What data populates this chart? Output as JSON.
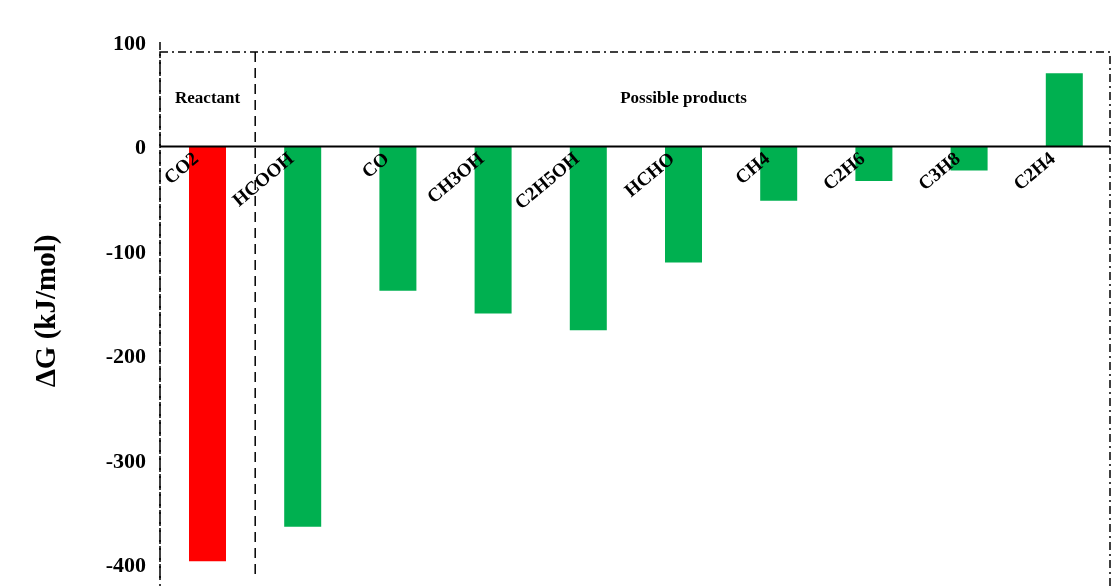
{
  "chart_data": {
    "type": "bar",
    "ylabel": "ΔG (kJ/mol)",
    "categories": [
      "CO2",
      "HCOOH",
      "CO",
      "CH3OH",
      "C2H5OH",
      "HCHO",
      "CH4",
      "C2H6",
      "C3H8",
      "C2H4"
    ],
    "values": [
      -397,
      -364,
      -138,
      -160,
      -176,
      -111,
      -52,
      -33,
      -23,
      70
    ],
    "colors": [
      "#ff0000",
      "#00b050",
      "#00b050",
      "#00b050",
      "#00b050",
      "#00b050",
      "#00b050",
      "#00b050",
      "#00b050",
      "#00b050"
    ],
    "ylim": [
      -415,
      100
    ],
    "yticks": [
      -400,
      -300,
      -200,
      -100,
      0,
      100
    ],
    "annotations": [
      "Reactant",
      "Possible products"
    ]
  }
}
